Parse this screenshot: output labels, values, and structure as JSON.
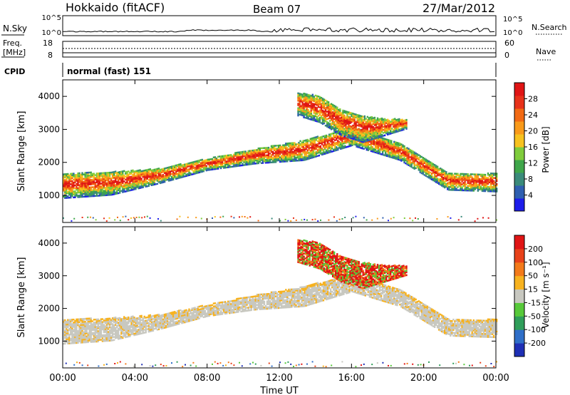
{
  "header": {
    "title": "Hokkaido (fitACF)",
    "beam": "Beam 07",
    "date": "27/Mar/2012"
  },
  "aux_panels": {
    "nsky": {
      "label": "N.Sky",
      "left_ticks": [
        "10^5",
        "10^0"
      ],
      "right_ticks": [
        "10^5",
        "10^0"
      ],
      "right_label": "N.Search"
    },
    "freq": {
      "label_lines": [
        "Freq.",
        "[MHz]"
      ],
      "left_ticks": [
        "18",
        "8"
      ],
      "right_ticks": [
        "60",
        "0"
      ],
      "right_label": "Nave"
    },
    "cpid": {
      "label": "CPID",
      "value": "normal (fast) 151"
    }
  },
  "chart_data": [
    {
      "type": "heatmap",
      "panel": "power",
      "xlabel": "",
      "ylabel": "Slant Range [km]",
      "x_ticks": [
        "00:00",
        "04:00",
        "08:00",
        "12:00",
        "16:00",
        "20:00",
        "00:00"
      ],
      "y_ticks": [
        "1000",
        "2000",
        "3000",
        "4000"
      ],
      "xlim_hours": [
        0,
        24
      ],
      "ylim_km": [
        180,
        4500
      ],
      "colorbar": {
        "label": "Power [dB]",
        "tick_labels": [
          "4",
          "8",
          "12",
          "16",
          "20",
          "24",
          "28"
        ],
        "colors": [
          "#1d1dea",
          "#2f5fb0",
          "#3a8a7a",
          "#3fa64a",
          "#7fcc3c",
          "#f7c21f",
          "#f99a1a",
          "#f26a14",
          "#e8321a",
          "#e01515"
        ]
      },
      "bands": [
        {
          "name": "main-echo",
          "from_hour": 0,
          "to_hour": 24,
          "lower_km": [
            900,
            1000,
            1350,
            1750,
            1950,
            2050,
            2500,
            2050,
            1150,
            1100
          ],
          "upper_km": [
            1650,
            1700,
            1800,
            2100,
            2400,
            2650,
            3050,
            2550,
            1650,
            1650
          ]
        },
        {
          "name": "upper-echo",
          "from_hour": 13,
          "to_hour": 19,
          "lower_km": [
            3400,
            3200,
            2800,
            2600,
            2800,
            3000
          ],
          "upper_km": [
            4100,
            4000,
            3600,
            3400,
            3300,
            3300
          ]
        }
      ]
    },
    {
      "type": "heatmap",
      "panel": "velocity",
      "xlabel": "Time UT",
      "ylabel": "Slant Range [km]",
      "x_ticks": [
        "00:00",
        "04:00",
        "08:00",
        "12:00",
        "16:00",
        "20:00",
        "00:00"
      ],
      "y_ticks": [
        "1000",
        "2000",
        "3000",
        "4000"
      ],
      "xlim_hours": [
        0,
        24
      ],
      "ylim_km": [
        180,
        4500
      ],
      "colorbar": {
        "label": "Velocity [m s⁻¹]",
        "tick_labels": [
          "200",
          "100",
          "50",
          "15",
          "-15",
          "-50",
          "-100",
          "-200"
        ],
        "colors": [
          "#1e2fb5",
          "#2f6fc8",
          "#2f9e5a",
          "#57c93a",
          "#c8c8c0",
          "#f7b21f",
          "#f37a1a",
          "#e8421a",
          "#e01515"
        ]
      },
      "bands": [
        {
          "name": "main-echo",
          "from_hour": 0,
          "to_hour": 24,
          "lower_km": [
            900,
            1000,
            1350,
            1750,
            1950,
            2050,
            2500,
            2050,
            1150,
            1100
          ],
          "upper_km": [
            1650,
            1700,
            1800,
            2100,
            2400,
            2650,
            3050,
            2550,
            1650,
            1650
          ]
        },
        {
          "name": "upper-echo",
          "from_hour": 13,
          "to_hour": 19,
          "lower_km": [
            3400,
            3200,
            2800,
            2600,
            2800,
            3000
          ],
          "upper_km": [
            4100,
            4000,
            3600,
            3400,
            3300,
            3300
          ]
        }
      ]
    }
  ]
}
